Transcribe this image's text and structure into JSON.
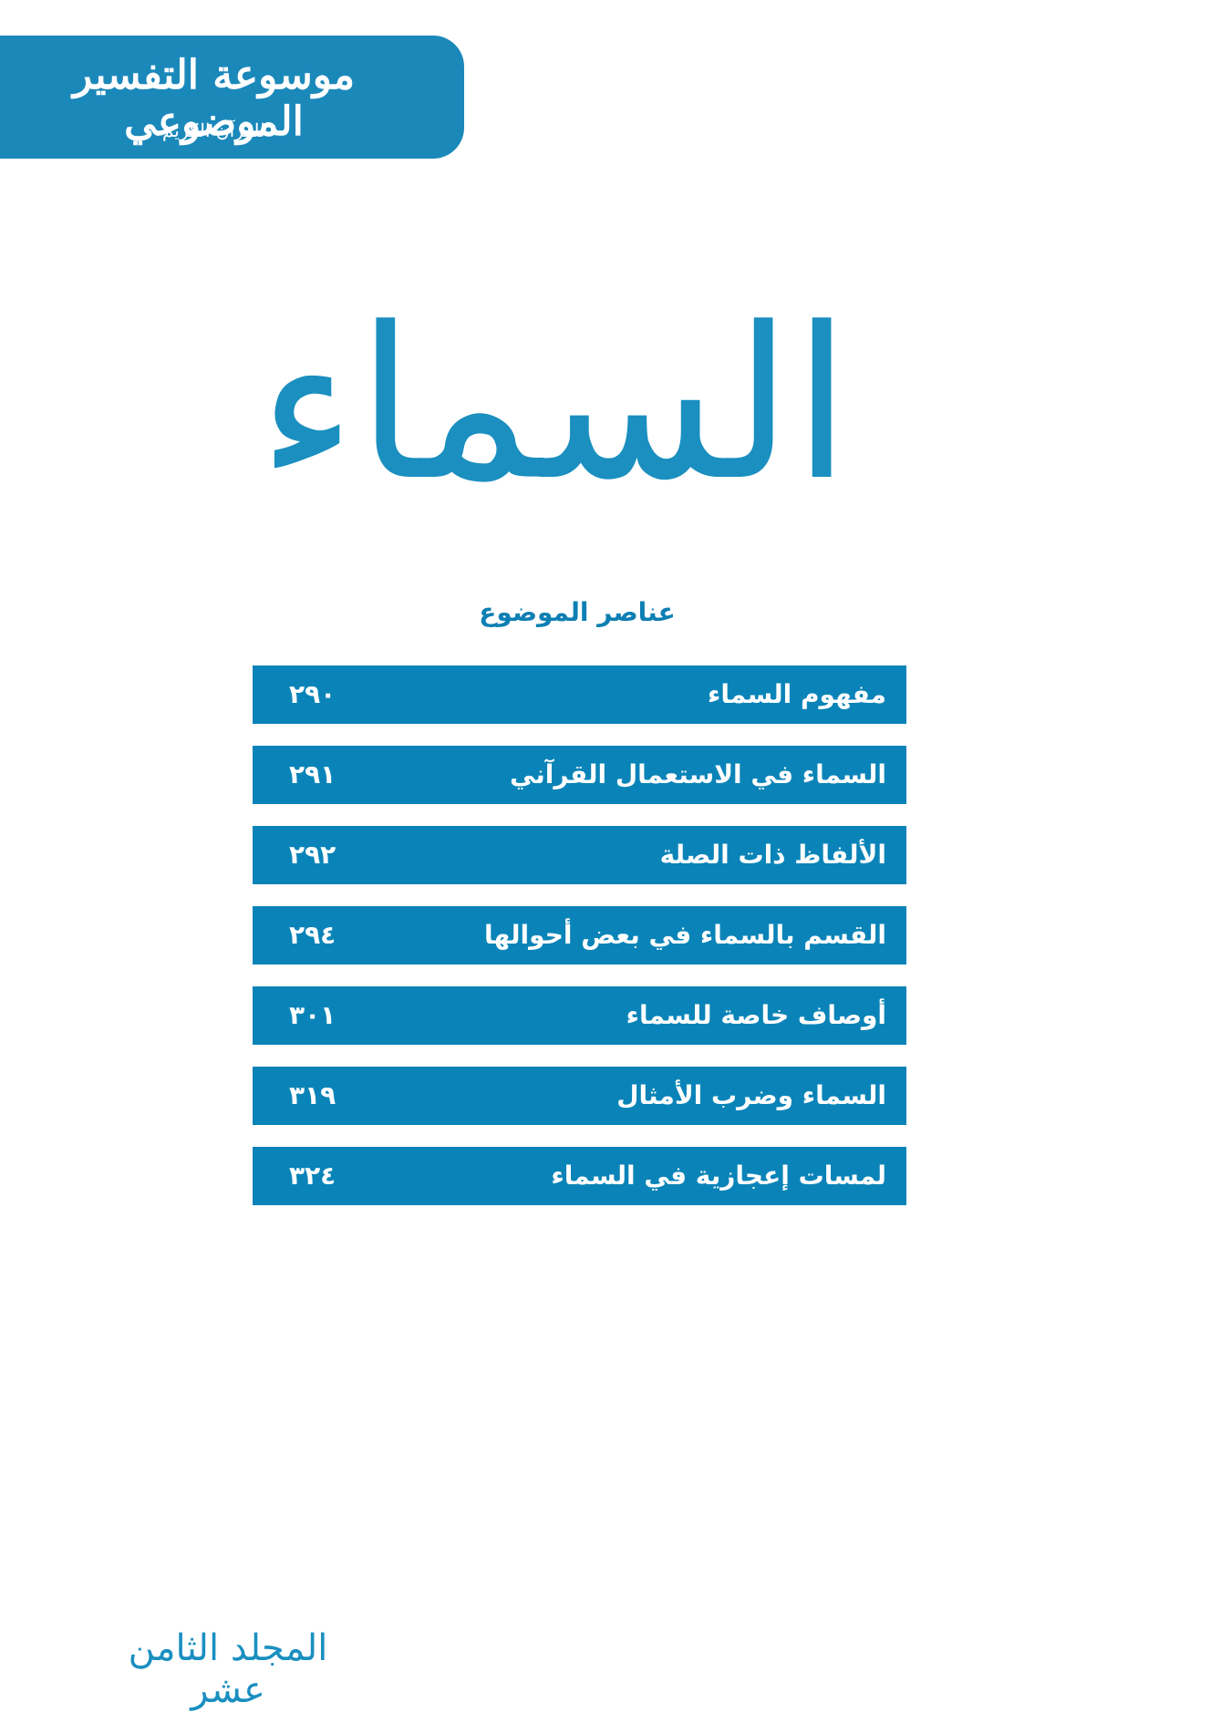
{
  "header": {
    "title": "موسوعة التفسير الموضوعي",
    "subtitle": "للقرآن الكريم"
  },
  "title": "السماء",
  "toc": {
    "heading": "عناصر الموضوع",
    "items": [
      {
        "title": "مفهوم السماء",
        "page": "٢٩٠"
      },
      {
        "title": "السماء في الاستعمال القرآني",
        "page": "٢٩١"
      },
      {
        "title": "الألفاظ ذات الصلة",
        "page": "٢٩٢"
      },
      {
        "title": "القسم بالسماء في بعض أحوالها",
        "page": "٢٩٤"
      },
      {
        "title": "أوصاف خاصة للسماء",
        "page": "٣٠١"
      },
      {
        "title": "السماء وضرب الأمثال",
        "page": "٣١٩"
      },
      {
        "title": "لمسات إعجازية في السماء",
        "page": "٣٢٤"
      }
    ]
  },
  "footer": {
    "volume": "المجلد الثامن عشر"
  }
}
